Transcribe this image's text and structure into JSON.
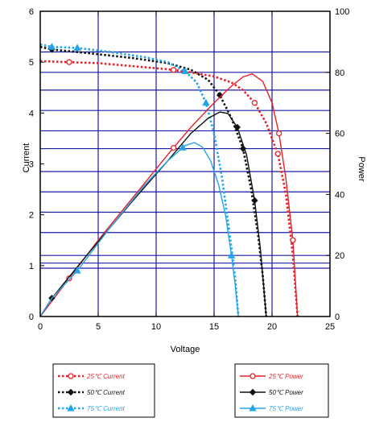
{
  "chart_data": {
    "type": "line",
    "xlabel": "Voltage",
    "ylabel": "Current",
    "y2label": "Power",
    "xlim": [
      0,
      25
    ],
    "ylim": [
      0,
      6
    ],
    "y2lim": [
      0,
      100
    ],
    "xticks": [
      "0",
      "5",
      "10",
      "15",
      "20",
      "25"
    ],
    "yticks": [
      "0",
      "1",
      "2",
      "3",
      "4",
      "5",
      "6"
    ],
    "y2ticks": [
      "0",
      "20",
      "40",
      "60",
      "80",
      "100"
    ],
    "grid": true,
    "grid_x": [
      5,
      10,
      15,
      20
    ],
    "grid_y": [
      0.95,
      1.05,
      1.2,
      1.65,
      2.05,
      2.45,
      2.85,
      3.3,
      3.65,
      4.05,
      4.45,
      4.8,
      5.2
    ],
    "legend_placement": "bottom",
    "colors": {
      "c25": "#e8202a",
      "c50": "#111111",
      "c75": "#22a5e6",
      "grid": "#1a1aa8",
      "frame": "#000000"
    },
    "series": [
      {
        "name": "25℃ Current",
        "axis": "left",
        "style": "dotted",
        "color": "#e8202a",
        "marker": "circle",
        "x": [
          0,
          2.5,
          5,
          8,
          11,
          13,
          15,
          16.5,
          17.5,
          18.5,
          19.5,
          20.5,
          21.2,
          21.8,
          22.2
        ],
        "y": [
          5.02,
          5.0,
          4.98,
          4.92,
          4.86,
          4.8,
          4.72,
          4.6,
          4.45,
          4.2,
          3.8,
          3.2,
          2.4,
          1.2,
          0
        ],
        "marker_x": [
          2.5,
          11.5,
          18.5,
          20.5
        ]
      },
      {
        "name": "50℃ Current",
        "axis": "left",
        "style": "dotted",
        "color": "#111111",
        "marker": "diamond",
        "x": [
          0,
          1,
          4,
          8,
          11,
          13,
          14.5,
          15.5,
          16.5,
          17.5,
          18.2,
          18.8,
          19.2,
          19.5
        ],
        "y": [
          5.3,
          5.25,
          5.18,
          5.08,
          4.98,
          4.85,
          4.65,
          4.35,
          3.9,
          3.3,
          2.5,
          1.6,
          0.8,
          0
        ],
        "marker_x": [
          1,
          15.5,
          17.5
        ]
      },
      {
        "name": "75℃ Current",
        "axis": "left",
        "style": "dotted",
        "color": "#22a5e6",
        "marker": "triangle",
        "x": [
          0,
          1,
          3.2,
          6,
          9,
          11,
          12.5,
          13.5,
          14.3,
          15,
          15.7,
          16.3,
          16.8,
          17.1
        ],
        "y": [
          5.35,
          5.3,
          5.28,
          5.2,
          5.1,
          5.0,
          4.82,
          4.6,
          4.2,
          3.6,
          2.7,
          1.7,
          0.8,
          0
        ],
        "marker_x": [
          1,
          3.2,
          12.5,
          14.3
        ]
      },
      {
        "name": "25℃ Power",
        "axis": "right",
        "style": "solid",
        "color": "#e8202a",
        "marker": "circle",
        "x": [
          0,
          2.5,
          5,
          8,
          11,
          13,
          15,
          16.5,
          17.5,
          18.3,
          19.2,
          20,
          20.6,
          21.2,
          21.8,
          22.2
        ],
        "y": [
          0,
          12.5,
          25,
          39,
          53,
          62,
          70,
          75.5,
          78.5,
          79.5,
          77,
          70,
          60,
          45,
          25,
          0
        ],
        "marker_x": [
          2.5,
          11.5,
          20.6,
          21.8
        ]
      },
      {
        "name": "50℃ Power",
        "axis": "right",
        "style": "solid",
        "color": "#111111",
        "marker": "diamond",
        "x": [
          0,
          1,
          4,
          8,
          11,
          13,
          14.5,
          15.5,
          16.2,
          17,
          17.8,
          18.5,
          19,
          19.5
        ],
        "y": [
          0,
          6,
          20,
          38,
          51,
          60,
          65,
          67,
          66.5,
          62,
          53,
          38,
          22,
          0
        ],
        "marker_x": [
          1,
          17,
          18.5
        ]
      },
      {
        "name": "75℃ Power",
        "axis": "right",
        "style": "solid",
        "color": "#22a5e6",
        "marker": "triangle",
        "x": [
          0,
          1,
          3.2,
          6,
          9,
          11,
          12.5,
          13.3,
          14,
          14.7,
          15.4,
          16,
          16.5,
          16.8,
          17.1
        ],
        "y": [
          0,
          6,
          15,
          29,
          43,
          51,
          56,
          57,
          55.5,
          51,
          43,
          33,
          20,
          11,
          0
        ],
        "marker_x": [
          3.2,
          12.3,
          16.5
        ]
      }
    ],
    "legend_left": [
      {
        "temp": "25",
        "label": "Current"
      },
      {
        "temp": "50",
        "label": "Current"
      },
      {
        "temp": "75",
        "label": "Current"
      }
    ],
    "legend_right": [
      {
        "temp": "25",
        "label": "Power"
      },
      {
        "temp": "50",
        "label": "Power"
      },
      {
        "temp": "75",
        "label": "Power"
      }
    ],
    "degree_symbol": "℃"
  }
}
